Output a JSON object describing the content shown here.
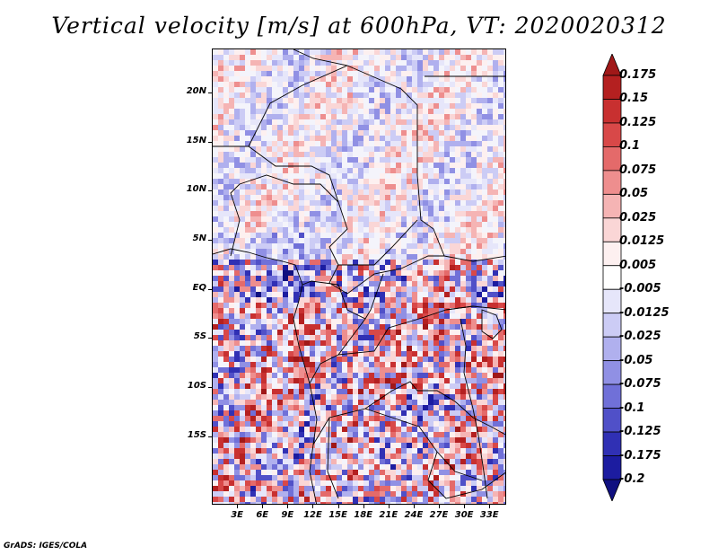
{
  "title": "Vertical velocity [m/s] at 600hPa, VT: 2020020312",
  "footer": "GrADS: IGES/COLA",
  "map": {
    "lon_range": [
      0,
      35
    ],
    "lat_range": [
      -22,
      24.5
    ],
    "lat_labels": [
      "20N",
      "15N",
      "10N",
      "5N",
      "EQ",
      "5S",
      "10S",
      "15S"
    ],
    "lon_labels": [
      "3E",
      "6E",
      "9E",
      "12E",
      "15E",
      "18E",
      "21E",
      "24E",
      "27E",
      "30E",
      "33E"
    ],
    "variable": "Vertical velocity",
    "units": "m/s",
    "level": "600hPa",
    "valid_time": "2020020312"
  },
  "colorbar": {
    "labels": [
      "0.175",
      "0.15",
      "0.125",
      "0.1",
      "0.075",
      "0.05",
      "0.025",
      "0.0125",
      "0.005",
      "-0.005",
      "-0.0125",
      "-0.025",
      "-0.05",
      "-0.075",
      "-0.1",
      "-0.125",
      "-0.175",
      "-0.2"
    ],
    "colors": [
      "#a01818",
      "#b42020",
      "#c83030",
      "#d84848",
      "#e46a6a",
      "#ee8e8e",
      "#f5b4b4",
      "#fad6d6",
      "#fdf0f0",
      "#ffffff",
      "#e6e6fa",
      "#ccccf5",
      "#b0b0ee",
      "#9090e4",
      "#7070d8",
      "#5050c8",
      "#3030b4",
      "#1c1ca0",
      "#101080"
    ]
  }
}
